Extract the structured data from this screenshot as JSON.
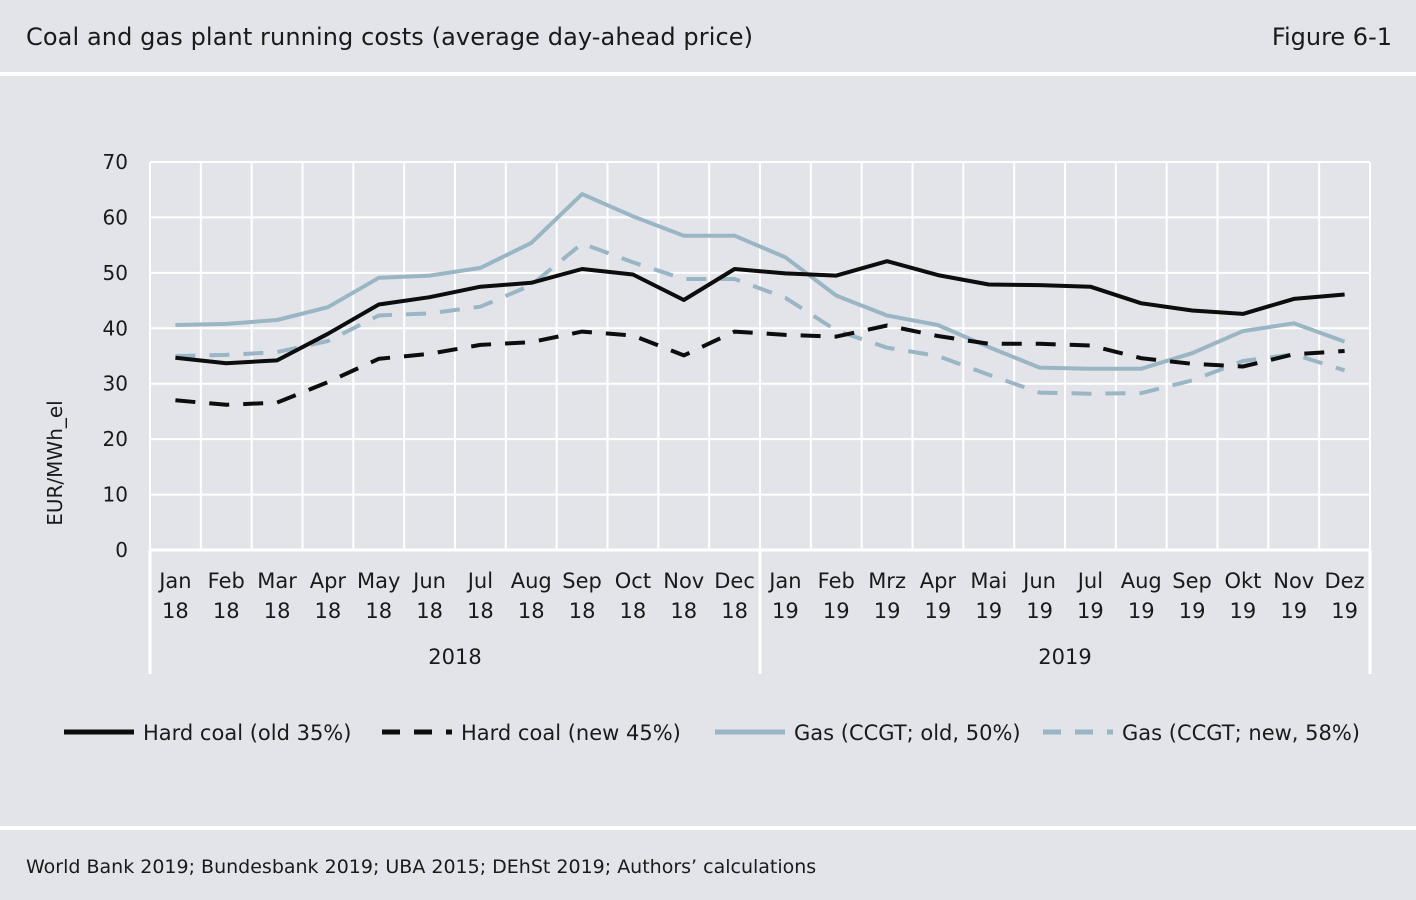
{
  "header": {
    "title": "Coal and gas plant running costs (average day-ahead price)",
    "figure_label": "Figure 6-1"
  },
  "footer": {
    "source": "World Bank 2019; Bundesbank 2019; UBA 2015; DEhSt 2019; Authors’ calculations"
  },
  "chart_data": {
    "type": "line",
    "ylabel": "EUR/MWh_el",
    "xlabel": "",
    "ylim": [
      0,
      70
    ],
    "yticks": [
      0,
      10,
      20,
      30,
      40,
      50,
      60,
      70
    ],
    "grid": true,
    "legend_position": "bottom",
    "categories": [
      [
        "Jan",
        "18"
      ],
      [
        "Feb",
        "18"
      ],
      [
        "Mar",
        "18"
      ],
      [
        "Apr",
        "18"
      ],
      [
        "May",
        "18"
      ],
      [
        "Jun",
        "18"
      ],
      [
        "Jul",
        "18"
      ],
      [
        "Aug",
        "18"
      ],
      [
        "Sep",
        "18"
      ],
      [
        "Oct",
        "18"
      ],
      [
        "Nov",
        "18"
      ],
      [
        "Dec",
        "18"
      ],
      [
        "Jan",
        "19"
      ],
      [
        "Feb",
        "19"
      ],
      [
        "Mrz",
        "19"
      ],
      [
        "Apr",
        "19"
      ],
      [
        "Mai",
        "19"
      ],
      [
        "Jun",
        "19"
      ],
      [
        "Jul",
        "19"
      ],
      [
        "Aug",
        "19"
      ],
      [
        "Sep",
        "19"
      ],
      [
        "Okt",
        "19"
      ],
      [
        "Nov",
        "19"
      ],
      [
        "Dez",
        "19"
      ]
    ],
    "groups": [
      {
        "label": "2018",
        "from": 0,
        "to": 11
      },
      {
        "label": "2019",
        "from": 12,
        "to": 23
      }
    ],
    "series": [
      {
        "name": "Hard coal (old 35%)",
        "color": "#0d0d0d",
        "dashed": false,
        "values": [
          34.7,
          33.7,
          34.2,
          39.0,
          44.3,
          45.6,
          47.5,
          48.2,
          50.7,
          49.7,
          45.1,
          50.7,
          49.9,
          49.5,
          52.1,
          49.6,
          47.9,
          47.8,
          47.5,
          44.5,
          43.2,
          42.6,
          45.3,
          46.1
        ]
      },
      {
        "name": "Hard coal (new 45%)",
        "color": "#0d0d0d",
        "dashed": true,
        "values": [
          27.0,
          26.2,
          26.6,
          30.3,
          34.5,
          35.4,
          37.0,
          37.5,
          39.4,
          38.7,
          35.1,
          39.4,
          38.8,
          38.5,
          40.5,
          38.6,
          37.2,
          37.2,
          36.9,
          34.6,
          33.6,
          33.1,
          35.3,
          35.9
        ]
      },
      {
        "name": "Gas (CCGT; old, 50%)",
        "color": "#9ab6c4",
        "dashed": false,
        "values": [
          40.6,
          40.8,
          41.5,
          43.8,
          49.1,
          49.5,
          50.9,
          55.4,
          64.2,
          60.2,
          56.7,
          56.7,
          52.8,
          45.9,
          42.3,
          40.6,
          36.6,
          32.9,
          32.7,
          32.7,
          35.5,
          39.5,
          40.9,
          37.6
        ]
      },
      {
        "name": "Gas (CCGT; new, 58%)",
        "color": "#9ab6c4",
        "dashed": true,
        "values": [
          35.0,
          35.2,
          35.7,
          37.7,
          42.3,
          42.7,
          43.9,
          47.8,
          55.3,
          51.9,
          48.9,
          48.9,
          45.5,
          39.6,
          36.5,
          35.0,
          31.6,
          28.4,
          28.2,
          28.3,
          30.6,
          34.1,
          35.3,
          32.4
        ]
      }
    ]
  }
}
